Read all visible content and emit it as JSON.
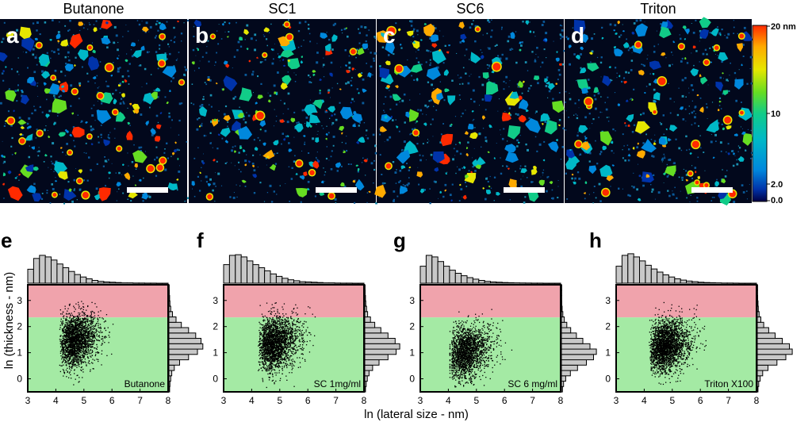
{
  "afm_panels": [
    {
      "letter": "a",
      "title": "Butanone"
    },
    {
      "letter": "b",
      "title": "SC1"
    },
    {
      "letter": "c",
      "title": "SC6"
    },
    {
      "letter": "d",
      "title": "Triton"
    }
  ],
  "colorbar": {
    "unit_label": "20 nm",
    "ticks": [
      "20 nm",
      "10",
      "2.0",
      "0.0"
    ],
    "tick_values": [
      20,
      10,
      2,
      0
    ],
    "colors": [
      "#ff2a00",
      "#ffaa00",
      "#e6e600",
      "#66dd22",
      "#11cc88",
      "#00b8c8",
      "#0088dd",
      "#0033aa",
      "#000044"
    ]
  },
  "shared_xlabel": "ln (lateral size - nm)",
  "shared_ylabel": "ln (thickness - nm)",
  "chart_data": [
    {
      "type": "scatter",
      "letter": "e",
      "legend": "Butanone",
      "xlim": [
        3,
        8
      ],
      "ylim": [
        -0.5,
        3.6
      ],
      "x_ticks": [
        "3",
        "4",
        "5",
        "6",
        "7",
        "8"
      ],
      "y_ticks": [
        "0",
        "1",
        "2",
        "3"
      ],
      "red_band": [
        2.35,
        3.6
      ],
      "green_band": [
        -0.5,
        2.35
      ],
      "x_mean": 4.4,
      "x_sd": 0.55,
      "y_mean": 1.45,
      "y_sd": 0.5,
      "n_points": 2200,
      "top_histogram": [
        0.45,
        0.8,
        0.9,
        0.85,
        0.75,
        0.62,
        0.5,
        0.38,
        0.28,
        0.2,
        0.14,
        0.09,
        0.06,
        0.04,
        0.03,
        0.02,
        0.01,
        0.01,
        0.005,
        0.005,
        0.003,
        0.002,
        0.001,
        0.001
      ],
      "right_histogram": [
        0.02,
        0.03,
        0.05,
        0.08,
        0.15,
        0.3,
        0.55,
        0.8,
        0.95,
        0.9,
        0.75,
        0.55,
        0.35,
        0.2,
        0.1,
        0.05,
        0.03,
        0.02,
        0.01,
        0.005
      ]
    },
    {
      "type": "scatter",
      "letter": "f",
      "legend": "SC 1mg/ml",
      "xlim": [
        3,
        8
      ],
      "ylim": [
        -0.5,
        3.6
      ],
      "x_ticks": [
        "3",
        "4",
        "5",
        "6",
        "7",
        "8"
      ],
      "y_ticks": [
        "0",
        "1",
        "2",
        "3"
      ],
      "red_band": [
        2.35,
        3.6
      ],
      "green_band": [
        -0.5,
        2.35
      ],
      "x_mean": 4.5,
      "x_sd": 0.6,
      "y_mean": 1.3,
      "y_sd": 0.5,
      "n_points": 2200,
      "top_histogram": [
        0.6,
        0.9,
        0.92,
        0.85,
        0.72,
        0.6,
        0.5,
        0.4,
        0.3,
        0.22,
        0.16,
        0.11,
        0.08,
        0.05,
        0.04,
        0.03,
        0.02,
        0.01,
        0.01,
        0.005,
        0.003,
        0.002,
        0.001,
        0.001
      ],
      "right_histogram": [
        0.02,
        0.04,
        0.07,
        0.12,
        0.22,
        0.4,
        0.65,
        0.88,
        0.98,
        0.85,
        0.65,
        0.45,
        0.28,
        0.16,
        0.08,
        0.05,
        0.03,
        0.02,
        0.01,
        0.005
      ]
    },
    {
      "type": "scatter",
      "letter": "g",
      "legend": "SC 6 mg/ml",
      "xlim": [
        3,
        8
      ],
      "ylim": [
        -0.5,
        3.6
      ],
      "x_ticks": [
        "3",
        "4",
        "5",
        "6",
        "7",
        "8"
      ],
      "y_ticks": [
        "0",
        "1",
        "2",
        "3"
      ],
      "red_band": [
        2.35,
        3.6
      ],
      "green_band": [
        -0.5,
        2.35
      ],
      "x_mean": 4.3,
      "x_sd": 0.6,
      "y_mean": 0.95,
      "y_sd": 0.5,
      "n_points": 1900,
      "top_histogram": [
        0.55,
        0.9,
        0.85,
        0.7,
        0.55,
        0.42,
        0.32,
        0.24,
        0.18,
        0.13,
        0.09,
        0.06,
        0.04,
        0.03,
        0.02,
        0.015,
        0.01,
        0.008,
        0.005,
        0.003,
        0.002,
        0.001,
        0.001,
        0.001
      ],
      "right_histogram": [
        0.03,
        0.06,
        0.12,
        0.25,
        0.45,
        0.7,
        0.9,
        0.98,
        0.8,
        0.6,
        0.42,
        0.26,
        0.15,
        0.08,
        0.04,
        0.02,
        0.01,
        0.008,
        0.005,
        0.003
      ]
    },
    {
      "type": "scatter",
      "letter": "h",
      "legend": "Triton X100",
      "xlim": [
        3,
        8
      ],
      "ylim": [
        -0.5,
        3.6
      ],
      "x_ticks": [
        "3",
        "4",
        "5",
        "6",
        "7",
        "8"
      ],
      "y_ticks": [
        "0",
        "1",
        "2",
        "3"
      ],
      "red_band": [
        2.35,
        3.6
      ],
      "green_band": [
        -0.5,
        2.35
      ],
      "x_mean": 4.45,
      "x_sd": 0.6,
      "y_mean": 1.2,
      "y_sd": 0.5,
      "n_points": 2400,
      "top_histogram": [
        0.55,
        0.9,
        0.95,
        0.85,
        0.72,
        0.58,
        0.46,
        0.36,
        0.27,
        0.2,
        0.14,
        0.1,
        0.07,
        0.05,
        0.03,
        0.02,
        0.015,
        0.01,
        0.006,
        0.004,
        0.002,
        0.001,
        0.001,
        0.001
      ],
      "right_histogram": [
        0.02,
        0.04,
        0.08,
        0.15,
        0.3,
        0.55,
        0.8,
        0.98,
        0.9,
        0.7,
        0.5,
        0.32,
        0.18,
        0.1,
        0.05,
        0.03,
        0.02,
        0.01,
        0.005,
        0.003
      ]
    }
  ]
}
